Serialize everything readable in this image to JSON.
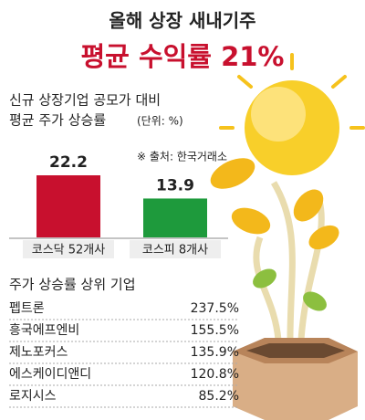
{
  "title": "올해 상장 새내기주",
  "headline": "평균 수익률 21%",
  "chart_data": {
    "type": "bar",
    "title": "신규 상장기업 공모가 대비",
    "subtitle": "평균 주가 상승률",
    "unit": "(단위: %)",
    "source": "※ 출처: 한국거래소",
    "categories": [
      "코스닥 52개사",
      "코스피 8개사"
    ],
    "values": [
      22.2,
      13.9
    ],
    "colors": [
      "#c8102e",
      "#1e9a3c"
    ]
  },
  "ranking": {
    "title": "주가 상승률 상위 기업",
    "rows": [
      [
        "펩트론",
        "237.5%"
      ],
      [
        "흥국에프엔비",
        "155.5%"
      ],
      [
        "제노포커스",
        "135.9%"
      ],
      [
        "에스케이디앤디",
        "120.8%"
      ],
      [
        "로지시스",
        "85.2%"
      ]
    ]
  }
}
